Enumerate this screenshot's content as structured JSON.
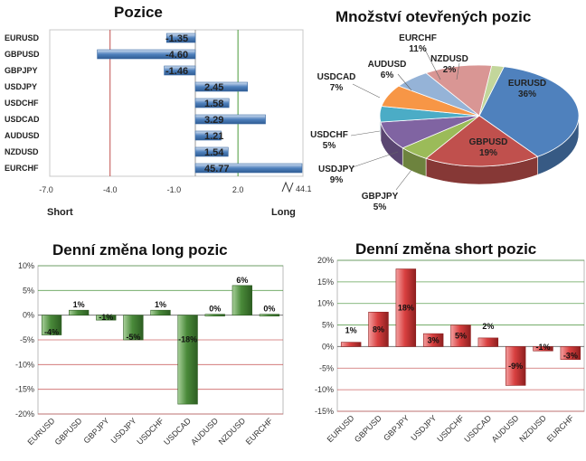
{
  "chart_data": [
    {
      "type": "bar",
      "orientation": "horizontal",
      "title": "Pozice",
      "categories": [
        "EURUSD",
        "GBPUSD",
        "GBPJPY",
        "USDJPY",
        "USDCHF",
        "USDCAD",
        "AUDUSD",
        "NZDUSD",
        "EURCHF"
      ],
      "values": [
        -1.35,
        -4.6,
        -1.46,
        2.45,
        1.58,
        3.29,
        1.21,
        1.54,
        45.77
      ],
      "value_labels": [
        "-1.35",
        "-4.60",
        "-1.46",
        "2.45",
        "1.58",
        "3.29",
        "1.21",
        "1.54",
        "45.77"
      ],
      "x_ticks": [
        "-7.0",
        "-4.0",
        "-1.0",
        "2.0"
      ],
      "axis_break_label": "44.1",
      "xlim": [
        -7.0,
        3.5
      ],
      "left_label": "Short",
      "right_label": "Long",
      "colors": {
        "bar": "#4f81bd",
        "short_line": "#c0504d",
        "long_line": "#4a9a3a"
      }
    },
    {
      "type": "pie",
      "title": "Množství otevřených pozic",
      "slices": [
        {
          "name": "EURUSD",
          "percent": 36,
          "label": "36%",
          "color": "#4f81bd"
        },
        {
          "name": "GBPUSD",
          "percent": 19,
          "label": "19%",
          "color": "#c0504d"
        },
        {
          "name": "GBPJPY",
          "percent": 5,
          "label": "5%",
          "color": "#9bbb59"
        },
        {
          "name": "USDJPY",
          "percent": 9,
          "label": "9%",
          "color": "#8064a2"
        },
        {
          "name": "USDCHF",
          "percent": 5,
          "label": "5%",
          "color": "#4bacc6"
        },
        {
          "name": "USDCAD",
          "percent": 7,
          "label": "7%",
          "color": "#f79646"
        },
        {
          "name": "AUDUSD",
          "percent": 6,
          "label": "6%",
          "color": "#95b3d7"
        },
        {
          "name": "EURCHF",
          "percent": 11,
          "label": "11%",
          "color": "#d99694"
        },
        {
          "name": "NZDUSD",
          "percent": 2,
          "label": "2%",
          "color": "#c3d69b"
        }
      ]
    },
    {
      "type": "bar",
      "title": "Denní změna long pozic",
      "categories": [
        "EURUSD",
        "GBPUSD",
        "GBPJPY",
        "USDJPY",
        "USDCHF",
        "USDCAD",
        "AUDUSD",
        "NZDUSD",
        "EURCHF"
      ],
      "values": [
        -4,
        1,
        -1,
        -5,
        1,
        -18,
        0,
        6,
        0
      ],
      "value_labels": [
        "-4%",
        "1%",
        "-1%",
        "-5%",
        "1%",
        "-18%",
        "0%",
        "6%",
        "0%"
      ],
      "ylim": [
        -20,
        10
      ],
      "y_ticks": [
        10,
        5,
        0,
        -5,
        -10,
        -15,
        -20
      ],
      "y_tick_labels": [
        "10%",
        "5%",
        "0%",
        "-5%",
        "-10%",
        "-15%",
        "-20%"
      ],
      "grid": true,
      "colors": {
        "bar": "#4a8a3a",
        "grid_pos": "#3a8a2a",
        "grid_neg": "#c04040"
      }
    },
    {
      "type": "bar",
      "title": "Denní změna short pozic",
      "categories": [
        "EURUSD",
        "GBPUSD",
        "GBPJPY",
        "USDJPY",
        "USDCHF",
        "USDCAD",
        "AUDUSD",
        "NZDUSD",
        "EURCHF"
      ],
      "values": [
        1,
        8,
        18,
        3,
        5,
        2,
        -9,
        -1,
        -3
      ],
      "value_labels": [
        "1%",
        "8%",
        "18%",
        "3%",
        "5%",
        "2%",
        "-9%",
        "-1%",
        "-3%"
      ],
      "ylim": [
        -15,
        20
      ],
      "y_ticks": [
        20,
        15,
        10,
        5,
        0,
        -5,
        -10,
        -15
      ],
      "y_tick_labels": [
        "20%",
        "15%",
        "10%",
        "5%",
        "0%",
        "-5%",
        "-10%",
        "-15%"
      ],
      "grid": true,
      "colors": {
        "bar": "#d94040",
        "grid_pos": "#3a8a2a",
        "grid_neg": "#c04040"
      }
    }
  ]
}
